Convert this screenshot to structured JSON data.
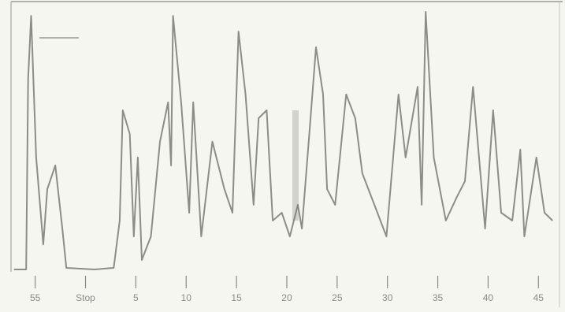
{
  "chart_data": {
    "type": "line",
    "x": [
      52.9,
      54.1,
      54.3,
      54.6,
      55.1,
      55.8,
      56.2,
      57.0,
      57.7,
      58.1,
      60.9,
      62.8,
      63.4,
      63.7,
      64.4,
      64.8,
      65.2,
      65.6,
      66.5,
      67.4,
      68.2,
      68.5,
      68.7,
      69.5,
      70.3,
      70.7,
      71.5,
      72.6,
      73.8,
      74.6,
      75.2,
      75.9,
      76.7,
      77.2,
      78.0,
      78.6,
      79.5,
      80.3,
      81.1,
      81.5,
      82.3,
      82.9,
      83.6,
      84.0,
      84.8,
      85.9,
      86.8,
      87.5,
      88.7,
      89.9,
      91.1,
      91.8,
      93.0,
      93.4,
      93.8,
      94.6,
      95.8,
      96.9,
      97.7,
      98.5,
      99.7,
      100.5,
      101.3,
      102.4,
      103.2,
      103.6,
      104.8,
      105.6,
      106.4
    ],
    "values": [
      0.9,
      0.9,
      73.1,
      97.0,
      43.3,
      10.4,
      31.3,
      40.3,
      16.4,
      1.5,
      0.9,
      1.5,
      19.4,
      61.2,
      52.2,
      13.4,
      43.3,
      4.5,
      13.4,
      49.3,
      64.2,
      40.3,
      97.0,
      64.2,
      22.4,
      64.2,
      13.4,
      49.3,
      31.3,
      22.4,
      91.0,
      67.2,
      25.4,
      58.2,
      61.2,
      19.4,
      22.4,
      13.4,
      25.4,
      16.4,
      55.2,
      85.1,
      67.2,
      31.3,
      25.4,
      67.2,
      58.2,
      37.3,
      25.4,
      13.4,
      67.2,
      43.3,
      70.1,
      25.4,
      98.5,
      43.3,
      19.4,
      28.4,
      34.3,
      70.1,
      16.4,
      61.2,
      22.4,
      19.4,
      46.3,
      13.4,
      43.3,
      22.4,
      19.4
    ],
    "color": "#7a7a76",
    "xlim": [
      52.6,
      106.7
    ],
    "ylim": [
      0,
      100
    ],
    "xticks": [
      {
        "value": 55,
        "label": "55"
      },
      {
        "value": 60,
        "label": "Stop"
      },
      {
        "value": 65,
        "label": "5"
      },
      {
        "value": 70,
        "label": "10"
      },
      {
        "value": 75,
        "label": "15"
      },
      {
        "value": 80,
        "label": "20"
      },
      {
        "value": 85,
        "label": "25"
      },
      {
        "value": 90,
        "label": "30"
      },
      {
        "value": 95,
        "label": "35"
      },
      {
        "value": 100,
        "label": "40"
      },
      {
        "value": 105,
        "label": "45"
      }
    ]
  }
}
